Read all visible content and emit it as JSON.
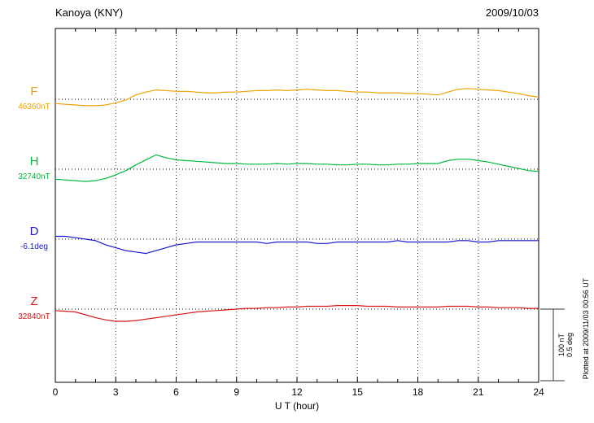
{
  "header": {
    "station": "Kanoya (KNY)",
    "date": "2009/10/03"
  },
  "x_axis": {
    "label": "U T (hour)"
  },
  "scalebar": {
    "amp": "100 nT",
    "ang": "0.5 deg"
  },
  "plotted_at": "Plotted at 2009/11/03 00:56 UT",
  "components": [
    {
      "key": "F",
      "label": "F",
      "value_label": "46360nT",
      "color": "#f0a202"
    },
    {
      "key": "H",
      "label": "H",
      "value_label": "32740nT",
      "color": "#00b93c"
    },
    {
      "key": "D",
      "label": "D",
      "value_label": "-6.1deg",
      "color": "#1a1acc"
    },
    {
      "key": "Z",
      "label": "Z",
      "value_label": "32840nT",
      "color": "#d81818"
    }
  ],
  "chart_data": {
    "type": "line",
    "title": "Kanoya (KNY) magnetogram",
    "date": "2009/10/03",
    "xlabel": "U T (hour)",
    "x_ticks": [
      0,
      3,
      6,
      9,
      12,
      15,
      18,
      21,
      24
    ],
    "x_start": 0,
    "x_step": 0.5,
    "x_end": 24,
    "grid": "dotted-vertical-every-3h",
    "legend_position": "left-of-plot",
    "scale": {
      "nT_per_div": 100,
      "deg_per_div": 0.5
    },
    "series": [
      {
        "name": "F",
        "unit": "nT",
        "baseline": 46360,
        "offsets": [
          -6,
          -7,
          -8,
          -9,
          -9,
          -8,
          -5,
          -1,
          6,
          10,
          13,
          12,
          11,
          11,
          10,
          9,
          9,
          10,
          10,
          11,
          12,
          12,
          13,
          12,
          13,
          14,
          13,
          12,
          12,
          11,
          10,
          10,
          9,
          9,
          9,
          8,
          8,
          7,
          6,
          10,
          14,
          15,
          14,
          13,
          12,
          10,
          8,
          5,
          3
        ]
      },
      {
        "name": "H",
        "unit": "nT",
        "baseline": 32740,
        "offsets": [
          -14,
          -15,
          -16,
          -17,
          -16,
          -13,
          -8,
          -2,
          6,
          13,
          20,
          16,
          13,
          12,
          11,
          10,
          9,
          8,
          8,
          7,
          7,
          7,
          8,
          7,
          8,
          8,
          7,
          7,
          6,
          6,
          7,
          7,
          6,
          6,
          7,
          7,
          8,
          8,
          8,
          12,
          14,
          14,
          12,
          10,
          7,
          4,
          1,
          -2,
          -3
        ]
      },
      {
        "name": "D",
        "unit": "deg",
        "baseline": -6.1,
        "offsets": [
          0.02,
          0.02,
          0.01,
          0.0,
          -0.01,
          -0.04,
          -0.06,
          -0.08,
          -0.09,
          -0.1,
          -0.08,
          -0.06,
          -0.04,
          -0.03,
          -0.02,
          -0.02,
          -0.02,
          -0.02,
          -0.02,
          -0.02,
          -0.02,
          -0.03,
          -0.02,
          -0.02,
          -0.02,
          -0.02,
          -0.03,
          -0.03,
          -0.02,
          -0.02,
          -0.02,
          -0.02,
          -0.02,
          -0.02,
          -0.01,
          -0.02,
          -0.02,
          -0.02,
          -0.02,
          -0.02,
          -0.01,
          -0.01,
          -0.02,
          -0.02,
          -0.01,
          -0.01,
          -0.01,
          -0.01,
          -0.01
        ]
      },
      {
        "name": "Z",
        "unit": "nT",
        "baseline": 32840,
        "offsets": [
          -2,
          -3,
          -4,
          -8,
          -12,
          -15,
          -17,
          -17,
          -16,
          -14,
          -12,
          -10,
          -8,
          -6,
          -4,
          -3,
          -2,
          -1,
          0,
          1,
          1,
          2,
          2,
          3,
          3,
          4,
          4,
          4,
          5,
          5,
          5,
          4,
          4,
          4,
          3,
          3,
          3,
          3,
          3,
          4,
          4,
          4,
          3,
          3,
          2,
          2,
          2,
          1,
          1
        ]
      }
    ]
  }
}
